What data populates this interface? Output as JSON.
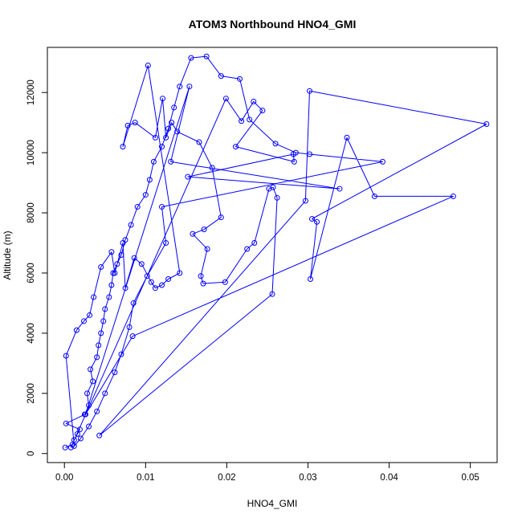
{
  "chart_data": {
    "type": "line",
    "title": "ATOM3 Northbound HNO4_GMI",
    "xlabel": "HNO4_GMI",
    "ylabel": "Altitude (m)",
    "xlim": [
      -0.0021,
      0.0533
    ],
    "ylim": [
      -300,
      13500
    ],
    "xticks": [
      0.0,
      0.01,
      0.02,
      0.03,
      0.04,
      0.05
    ],
    "xtick_labels": [
      "0.00",
      "0.01",
      "0.02",
      "0.03",
      "0.04",
      "0.05"
    ],
    "yticks": [
      0,
      2000,
      4000,
      6000,
      8000,
      10000,
      12000
    ],
    "ytick_labels": [
      "0",
      "2000",
      "4000",
      "6000",
      "8000",
      "10000",
      "12000"
    ],
    "grid": false,
    "color": "#0000ff",
    "marker": "open-circle",
    "series": [
      {
        "values": [
          [
            0.0001,
            200
          ],
          [
            0.001,
            300
          ],
          [
            0.0012,
            450
          ],
          [
            0.0016,
            650
          ],
          [
            0.0019,
            800
          ],
          [
            0.0002,
            1000
          ],
          [
            0.0025,
            1300
          ],
          [
            0.003,
            1600
          ],
          [
            0.0028,
            2000
          ],
          [
            0.0035,
            2400
          ],
          [
            0.0032,
            2800
          ],
          [
            0.004,
            3200
          ],
          [
            0.0042,
            3600
          ],
          [
            0.0045,
            4000
          ],
          [
            0.0048,
            4400
          ],
          [
            0.005,
            4800
          ],
          [
            0.0055,
            5200
          ],
          [
            0.0058,
            5600
          ],
          [
            0.006,
            6000
          ],
          [
            0.0065,
            6300
          ],
          [
            0.007,
            6600
          ],
          [
            0.0075,
            7100
          ],
          [
            0.0082,
            7600
          ],
          [
            0.009,
            8200
          ],
          [
            0.01,
            8600
          ],
          [
            0.0105,
            9100
          ],
          [
            0.011,
            9700
          ],
          [
            0.012,
            10200
          ],
          [
            0.0128,
            10800
          ],
          [
            0.0135,
            11500
          ],
          [
            0.0142,
            12200
          ],
          [
            0.0156,
            13150
          ],
          [
            0.0175,
            13200
          ],
          [
            0.0193,
            12550
          ],
          [
            0.0216,
            12450
          ],
          [
            0.0228,
            11100
          ],
          [
            0.026,
            10300
          ],
          [
            0.0285,
            10000
          ],
          [
            0.0302,
            9950
          ],
          [
            0.0392,
            9700
          ],
          [
            0.012,
            8200
          ],
          [
            0.0125,
            7000
          ],
          [
            0.0102,
            5900
          ],
          [
            0.0085,
            5000
          ],
          [
            0.008,
            4200
          ],
          [
            0.007,
            3300
          ],
          [
            0.0062,
            2700
          ],
          [
            0.005,
            2000
          ],
          [
            0.004,
            1400
          ],
          [
            0.003,
            900
          ],
          [
            0.002,
            500
          ],
          [
            0.0012,
            250
          ],
          [
            0.0002,
            3250
          ],
          [
            0.0015,
            4100
          ],
          [
            0.0024,
            4400
          ],
          [
            0.0031,
            4600
          ],
          [
            0.0036,
            5200
          ],
          [
            0.0045,
            6200
          ],
          [
            0.0058,
            6700
          ],
          [
            0.0062,
            6000
          ],
          [
            0.0072,
            7000
          ],
          [
            0.0075,
            5500
          ],
          [
            0.0086,
            6500
          ],
          [
            0.0095,
            6300
          ],
          [
            0.0107,
            5700
          ],
          [
            0.0112,
            5500
          ],
          [
            0.012,
            5600
          ],
          [
            0.0128,
            5800
          ],
          [
            0.0142,
            6000
          ],
          [
            0.0103,
            12900
          ],
          [
            0.0072,
            10200
          ],
          [
            0.0078,
            10900
          ],
          [
            0.0087,
            11000
          ],
          [
            0.0112,
            10500
          ],
          [
            0.0121,
            11800
          ],
          [
            0.0125,
            10500
          ],
          [
            0.0132,
            11000
          ],
          [
            0.0139,
            10700
          ],
          [
            0.0166,
            10350
          ],
          [
            0.0182,
            9500
          ],
          [
            0.0193,
            7850
          ],
          [
            0.0172,
            7450
          ],
          [
            0.0158,
            7300
          ],
          [
            0.0176,
            6800
          ],
          [
            0.0168,
            5900
          ],
          [
            0.0171,
            5650
          ],
          [
            0.0198,
            5700
          ],
          [
            0.0225,
            6800
          ],
          [
            0.0234,
            7000
          ],
          [
            0.0252,
            8800
          ],
          [
            0.0257,
            8850
          ],
          [
            0.0262,
            8500
          ],
          [
            0.0256,
            5300
          ],
          [
            0.0043,
            600
          ],
          [
            0.0297,
            8400
          ],
          [
            0.0302,
            12050
          ],
          [
            0.052,
            10950
          ],
          [
            0.0305,
            7800
          ],
          [
            0.0311,
            7700
          ],
          [
            0.0303,
            5800
          ],
          [
            0.0348,
            10500
          ],
          [
            0.0382,
            8550
          ],
          [
            0.0479,
            8550
          ],
          [
            0.0084,
            3900
          ],
          [
            0.0026,
            1300
          ],
          [
            0.0154,
            12200
          ],
          [
            0.0131,
            9700
          ],
          [
            0.0339,
            8800
          ],
          [
            0.0152,
            9200
          ],
          [
            0.0282,
            9950
          ],
          [
            0.0283,
            9700
          ],
          [
            0.0211,
            10200
          ],
          [
            0.0244,
            11400
          ],
          [
            0.0233,
            11700
          ],
          [
            0.0218,
            11050
          ],
          [
            0.0199,
            11800
          ],
          [
            0.0008,
            200
          ]
        ]
      }
    ]
  }
}
